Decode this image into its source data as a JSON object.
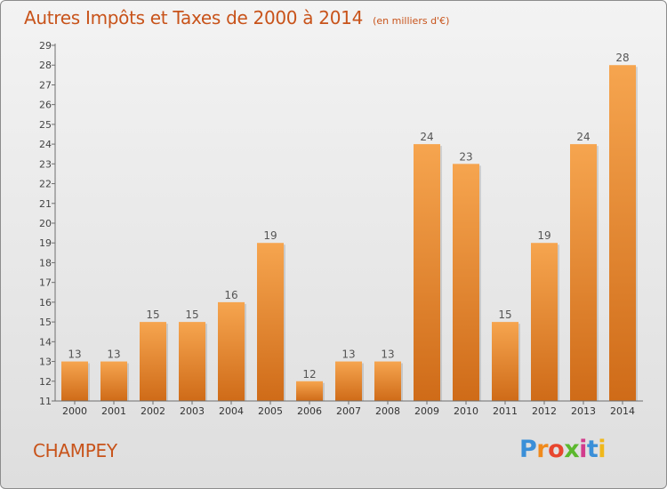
{
  "title": "Autres Impôts et Taxes de 2000 à 2014",
  "unit": "(en milliers d'€)",
  "commune": "CHAMPEY",
  "logo": {
    "letters": [
      "P",
      "r",
      "o",
      "x",
      "i",
      "t",
      "i"
    ]
  },
  "colors": {
    "bar_light": "#f6a54f",
    "bar_dark": "#cf6b18",
    "title": "#c8531a",
    "axis": "#6e6e6e"
  },
  "chart_data": {
    "type": "bar",
    "title": "Autres Impôts et Taxes de 2000 à 2014",
    "subtitle": "(en milliers d'€)",
    "categories": [
      "2000",
      "2001",
      "2002",
      "2003",
      "2004",
      "2005",
      "2006",
      "2007",
      "2008",
      "2009",
      "2010",
      "2011",
      "2012",
      "2013",
      "2014"
    ],
    "values": [
      13,
      13,
      15,
      15,
      16,
      19,
      12,
      13,
      13,
      24,
      23,
      15,
      19,
      24,
      28
    ],
    "data_labels": [
      "13",
      "13",
      "15",
      "15",
      "16",
      "19",
      "12",
      "13",
      "13",
      "24",
      "23",
      "15",
      "19",
      "24",
      "28"
    ],
    "ylim": [
      11,
      29
    ],
    "yticks": [
      "11",
      "12",
      "13",
      "14",
      "15",
      "16",
      "17",
      "18",
      "19",
      "20",
      "21",
      "22",
      "23",
      "24",
      "25",
      "26",
      "27",
      "28",
      "29"
    ],
    "grid": false,
    "legend": "none"
  }
}
